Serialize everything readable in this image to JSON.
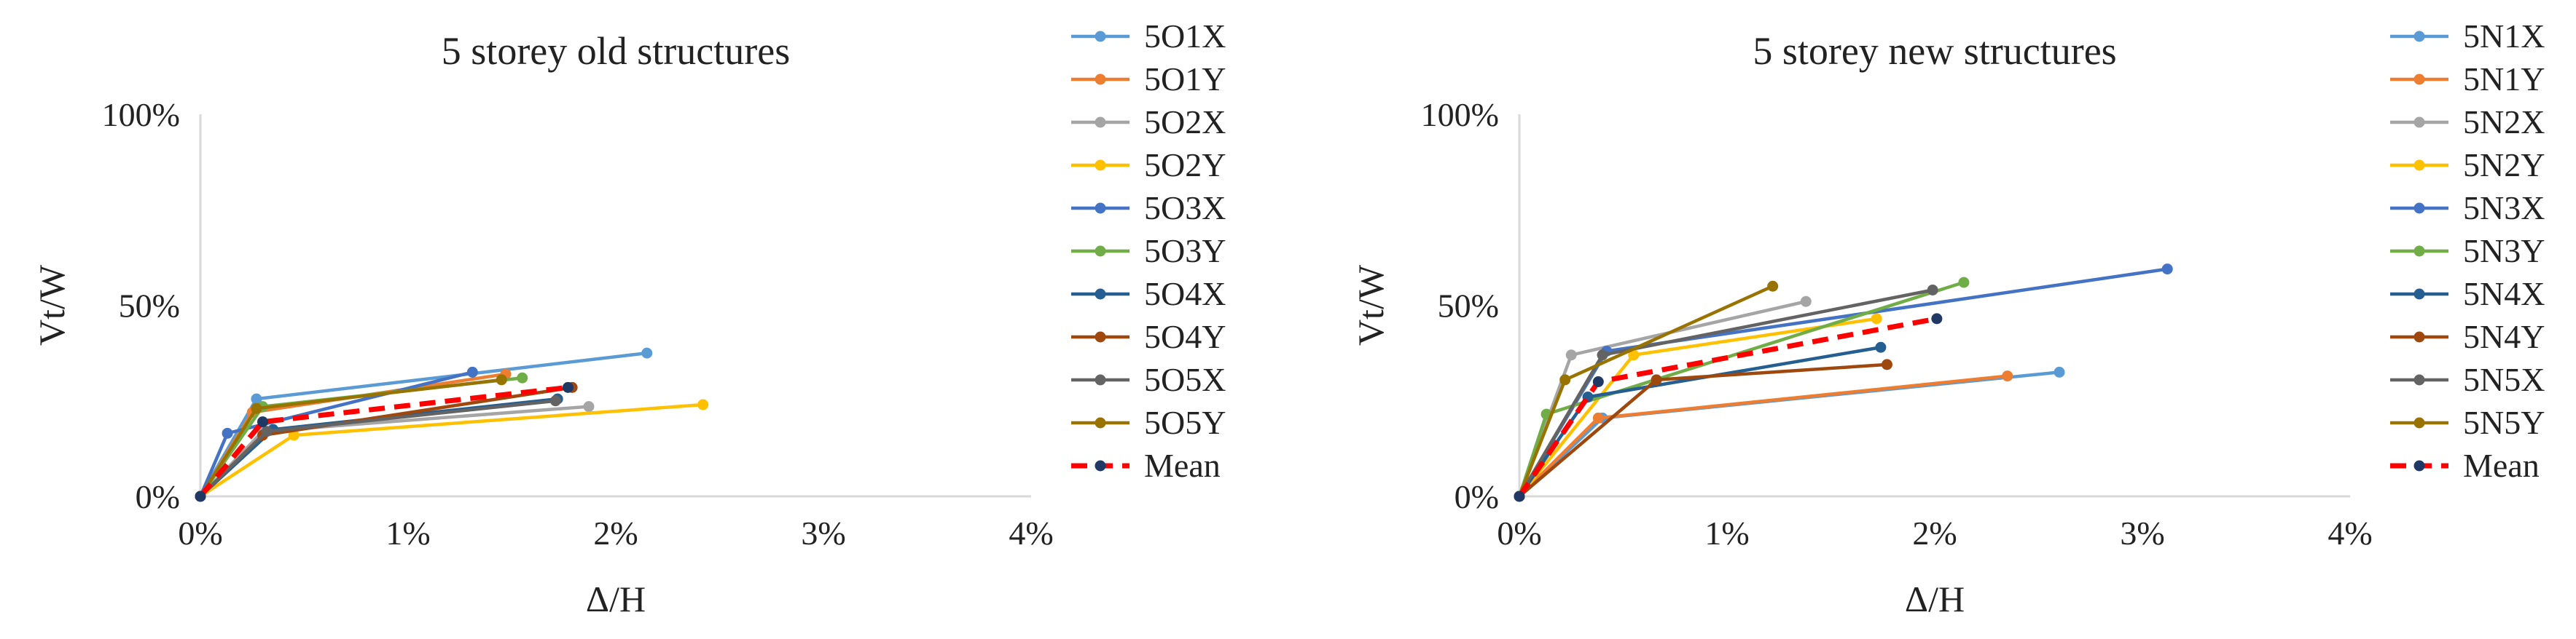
{
  "colors": {
    "series": [
      "#5B9BD5",
      "#ED7D31",
      "#A5A5A5",
      "#FFC000",
      "#4472C4",
      "#70AD47",
      "#255E91",
      "#9E480E",
      "#636363",
      "#997300"
    ],
    "mean": "#FF0000",
    "mean_marker": "#1F3864",
    "axis": "#D9D9D9"
  },
  "chart_data": [
    {
      "type": "line",
      "title": "5 storey old structures",
      "xlabel": "Δ/H",
      "ylabel": "Vt/W",
      "xlim": [
        0,
        4
      ],
      "ylim": [
        0,
        100
      ],
      "x_ticks": [
        "0%",
        "1%",
        "2%",
        "3%",
        "4%"
      ],
      "y_ticks": [
        "0%",
        "50%",
        "100%"
      ],
      "grid": false,
      "legend_position": "right",
      "series": [
        {
          "name": "5O1X",
          "points": [
            [
              0,
              0
            ],
            [
              0.27,
              25.5
            ],
            [
              2.15,
              37.5
            ]
          ]
        },
        {
          "name": "5O1Y",
          "points": [
            [
              0,
              0
            ],
            [
              0.25,
              22.0
            ],
            [
              1.47,
              32.0
            ]
          ]
        },
        {
          "name": "5O2X",
          "points": [
            [
              0,
              0
            ],
            [
              0.3,
              17.0
            ],
            [
              1.87,
              23.5
            ]
          ]
        },
        {
          "name": "5O2Y",
          "points": [
            [
              0,
              0
            ],
            [
              0.45,
              16.0
            ],
            [
              2.42,
              24.0
            ]
          ]
        },
        {
          "name": "5O3X",
          "points": [
            [
              0,
              0
            ],
            [
              0.13,
              16.5
            ],
            [
              1.31,
              32.5
            ]
          ]
        },
        {
          "name": "5O3Y",
          "points": [
            [
              0,
              0
            ],
            [
              0.3,
              23.5
            ],
            [
              1.55,
              31.0
            ]
          ]
        },
        {
          "name": "5O4X",
          "points": [
            [
              0,
              0
            ],
            [
              0.35,
              17.5
            ],
            [
              1.72,
              25.5
            ]
          ]
        },
        {
          "name": "5O4Y",
          "points": [
            [
              0,
              0
            ],
            [
              0.3,
              16.0
            ],
            [
              1.79,
              28.5
            ]
          ]
        },
        {
          "name": "5O5X",
          "points": [
            [
              0,
              0
            ],
            [
              0.32,
              17.0
            ],
            [
              1.71,
              25.0
            ]
          ]
        },
        {
          "name": "5O5Y",
          "points": [
            [
              0,
              0
            ],
            [
              0.27,
              23.0
            ],
            [
              1.45,
              30.5
            ]
          ]
        },
        {
          "name": "Mean",
          "points": [
            [
              0,
              0
            ],
            [
              0.3,
              19.5
            ],
            [
              1.77,
              28.5
            ]
          ]
        }
      ]
    },
    {
      "type": "line",
      "title": "5 storey new structures",
      "xlabel": "Δ/H",
      "ylabel": "Vt/W",
      "xlim": [
        0,
        4
      ],
      "ylim": [
        0,
        100
      ],
      "x_ticks": [
        "0%",
        "1%",
        "2%",
        "3%",
        "4%"
      ],
      "y_ticks": [
        "0%",
        "50%",
        "100%"
      ],
      "grid": false,
      "legend_position": "right",
      "series": [
        {
          "name": "5N1X",
          "points": [
            [
              0,
              0
            ],
            [
              0.4,
              20.5
            ],
            [
              2.6,
              32.5
            ]
          ]
        },
        {
          "name": "5N1Y",
          "points": [
            [
              0,
              0
            ],
            [
              0.38,
              20.5
            ],
            [
              2.35,
              31.5
            ]
          ]
        },
        {
          "name": "5N2X",
          "points": [
            [
              0,
              0
            ],
            [
              0.25,
              37.0
            ],
            [
              1.38,
              51.0
            ]
          ]
        },
        {
          "name": "5N2Y",
          "points": [
            [
              0,
              0
            ],
            [
              0.55,
              37.0
            ],
            [
              1.72,
              46.5
            ]
          ]
        },
        {
          "name": "5N3X",
          "points": [
            [
              0,
              0
            ],
            [
              0.42,
              38.0
            ],
            [
              3.12,
              59.5
            ]
          ]
        },
        {
          "name": "5N3Y",
          "points": [
            [
              0,
              0
            ],
            [
              0.13,
              21.5
            ],
            [
              2.14,
              56.0
            ]
          ]
        },
        {
          "name": "5N4X",
          "points": [
            [
              0,
              0
            ],
            [
              0.33,
              26.0
            ],
            [
              1.74,
              39.0
            ]
          ]
        },
        {
          "name": "5N4Y",
          "points": [
            [
              0,
              0
            ],
            [
              0.66,
              30.5
            ],
            [
              1.77,
              34.5
            ]
          ]
        },
        {
          "name": "5N5X",
          "points": [
            [
              0,
              0
            ],
            [
              0.4,
              37.0
            ],
            [
              1.99,
              54.0
            ]
          ]
        },
        {
          "name": "5N5Y",
          "points": [
            [
              0,
              0
            ],
            [
              0.22,
              30.5
            ],
            [
              1.22,
              55.0
            ]
          ]
        },
        {
          "name": "Mean",
          "points": [
            [
              0,
              0
            ],
            [
              0.38,
              30.0
            ],
            [
              2.01,
              46.5
            ]
          ]
        }
      ]
    }
  ]
}
